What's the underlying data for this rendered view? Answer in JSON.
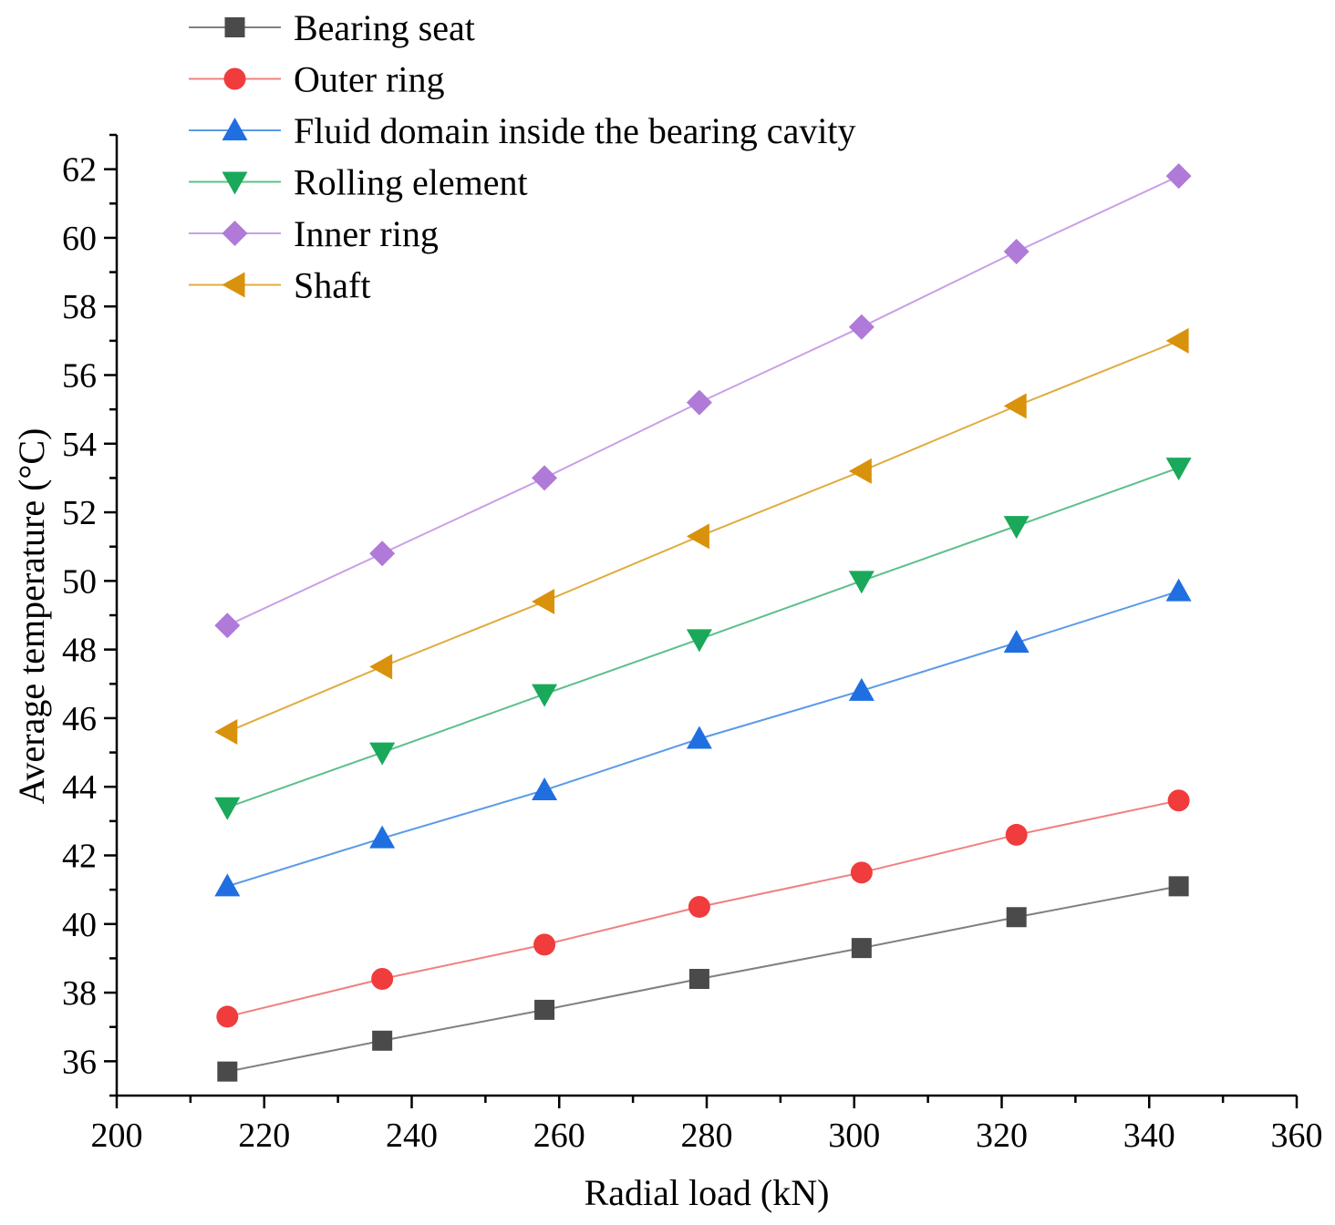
{
  "chart_data": {
    "type": "line",
    "title": "",
    "xlabel": "Radial load (kN)",
    "ylabel": "Average temperature (°C)",
    "xlim": [
      200,
      360
    ],
    "ylim": [
      35,
      63
    ],
    "xticks": [
      200,
      220,
      240,
      260,
      280,
      300,
      320,
      340,
      360
    ],
    "yticks": [
      36,
      38,
      40,
      42,
      44,
      46,
      48,
      50,
      52,
      54,
      56,
      58,
      60,
      62
    ],
    "legend_position": "top-left",
    "x": [
      215,
      236,
      258,
      279,
      301,
      322,
      344
    ],
    "series": [
      {
        "name": "Bearing seat",
        "marker": "square",
        "color": "#4a4a4a",
        "line_color": "#808080",
        "values": [
          35.7,
          36.6,
          37.5,
          38.4,
          39.3,
          40.2,
          41.1
        ]
      },
      {
        "name": "Outer ring",
        "marker": "circle",
        "color": "#f03c3c",
        "line_color": "#f08080",
        "values": [
          37.3,
          38.4,
          39.4,
          40.5,
          41.5,
          42.6,
          43.6
        ]
      },
      {
        "name": "Fluid domain inside the bearing cavity",
        "marker": "triangle-up",
        "color": "#1f6fe0",
        "line_color": "#5a9ae8",
        "values": [
          41.1,
          42.5,
          43.9,
          45.4,
          46.8,
          48.2,
          49.7
        ]
      },
      {
        "name": "Rolling element",
        "marker": "triangle-down",
        "color": "#1aa85a",
        "line_color": "#5cc08a",
        "values": [
          43.4,
          45.0,
          46.7,
          48.3,
          50.0,
          51.6,
          53.3
        ]
      },
      {
        "name": "Inner ring",
        "marker": "diamond",
        "color": "#b07ad8",
        "line_color": "#c9a0e8",
        "values": [
          48.7,
          50.8,
          53.0,
          55.2,
          57.4,
          59.6,
          61.8
        ]
      },
      {
        "name": "Shaft",
        "marker": "triangle-left",
        "color": "#d9920b",
        "line_color": "#e0ac40",
        "values": [
          45.6,
          47.5,
          49.4,
          51.3,
          53.2,
          55.1,
          57.0
        ]
      }
    ]
  }
}
